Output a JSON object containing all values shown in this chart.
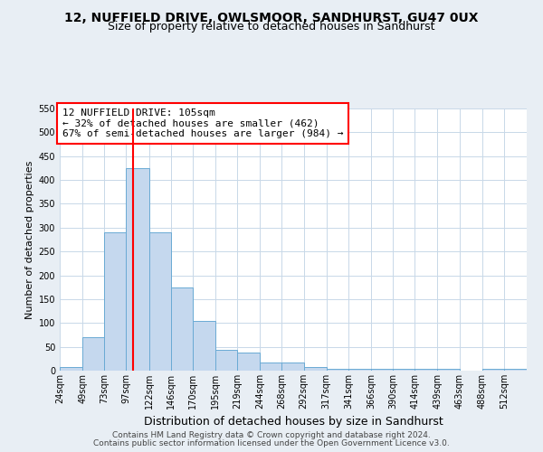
{
  "title": "12, NUFFIELD DRIVE, OWLSMOOR, SANDHURST, GU47 0UX",
  "subtitle": "Size of property relative to detached houses in Sandhurst",
  "xlabel": "Distribution of detached houses by size in Sandhurst",
  "ylabel": "Number of detached properties",
  "bar_labels": [
    "24sqm",
    "49sqm",
    "73sqm",
    "97sqm",
    "122sqm",
    "146sqm",
    "170sqm",
    "195sqm",
    "219sqm",
    "244sqm",
    "268sqm",
    "292sqm",
    "317sqm",
    "341sqm",
    "366sqm",
    "390sqm",
    "414sqm",
    "439sqm",
    "463sqm",
    "488sqm",
    "512sqm"
  ],
  "bar_values": [
    8,
    70,
    290,
    425,
    290,
    175,
    105,
    43,
    38,
    18,
    18,
    8,
    4,
    4,
    4,
    4,
    4,
    4,
    0,
    4,
    4
  ],
  "bar_color": "#c5d8ee",
  "bar_edge_color": "#6aaad4",
  "bar_edge_width": 0.7,
  "red_line_x": 105,
  "annotation_text": "12 NUFFIELD DRIVE: 105sqm\n← 32% of detached houses are smaller (462)\n67% of semi-detached houses are larger (984) →",
  "annotation_box_color": "white",
  "annotation_box_edge_color": "red",
  "red_line_color": "red",
  "ylim": [
    0,
    550
  ],
  "yticks": [
    0,
    50,
    100,
    150,
    200,
    250,
    300,
    350,
    400,
    450,
    500,
    550
  ],
  "footnote1": "Contains HM Land Registry data © Crown copyright and database right 2024.",
  "footnote2": "Contains public sector information licensed under the Open Government Licence v3.0.",
  "background_color": "#e8eef4",
  "plot_background_color": "white",
  "grid_color": "#c8d8e8",
  "title_fontsize": 10,
  "subtitle_fontsize": 9,
  "xlabel_fontsize": 9,
  "ylabel_fontsize": 8,
  "tick_fontsize": 7,
  "annotation_fontsize": 8,
  "footnote_fontsize": 6.5
}
